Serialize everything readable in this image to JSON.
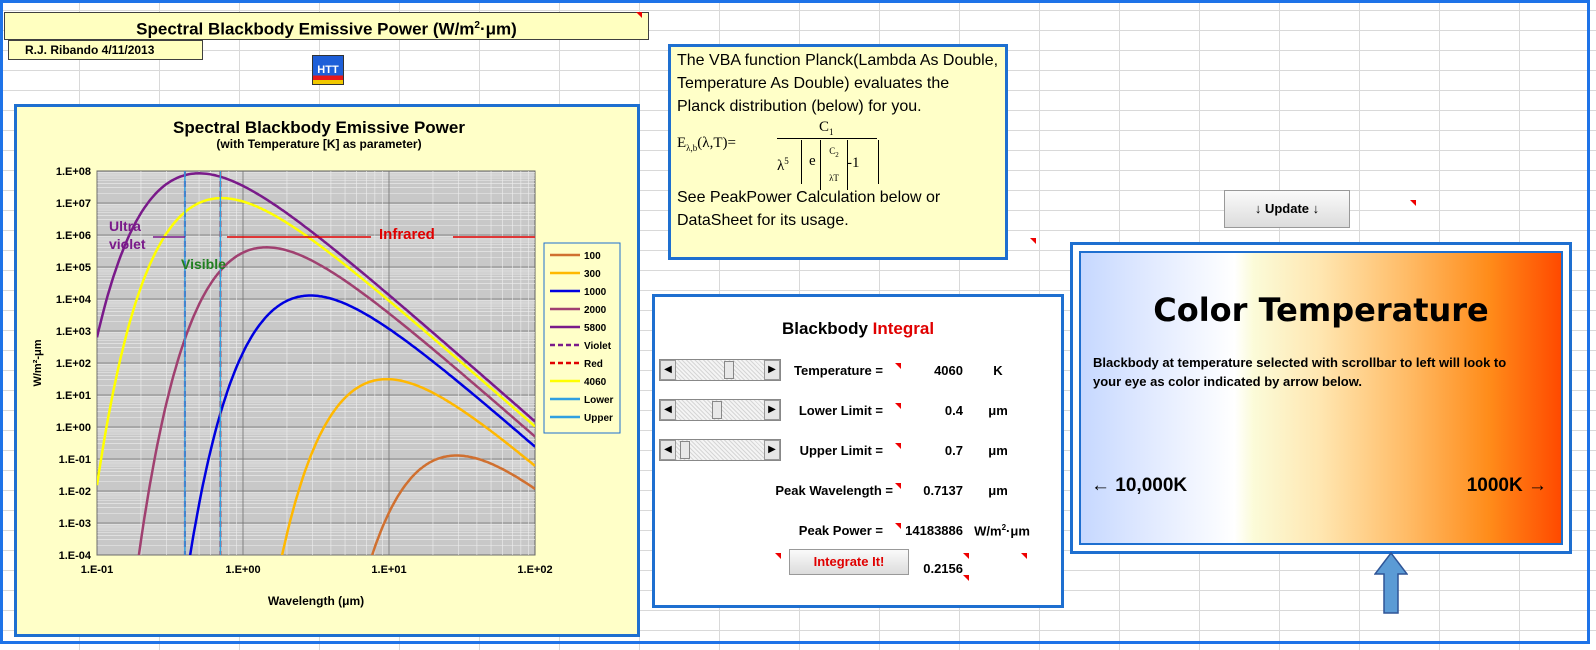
{
  "sheet": {
    "title_main": "Spectral Blackbody Emissive Power (W/m",
    "title_sup": "2",
    "title_end": "·μm)",
    "author": "R.J. Ribando 4/11/2013",
    "logo_text": "HTT"
  },
  "vba_note": {
    "text1": "The VBA function Planck(Lambda As Double, Temperature As Double) evaluates the Planck distribution (below) for you.",
    "text2": "See PeakPower Calculation below or DataSheet for its usage.",
    "formula": {
      "lhs_E": "E",
      "lhs_sub": "λ,b",
      "lhs_args": "(λ,T)=",
      "numerator": "C",
      "numerator_sub": "1",
      "lambda5": "λ",
      "lambda5_sup": "5",
      "exp_base": "e",
      "exp_num": "C",
      "exp_num_sub": "2",
      "exp_den": "λT",
      "minus_one": "-1"
    }
  },
  "integral": {
    "title_black": "Blackbody",
    "title_red": "Integral",
    "rows": [
      {
        "label": "Temperature =",
        "value": "4060",
        "unit": "K",
        "scroll_fraction": 0.6
      },
      {
        "label": "Lower Limit =",
        "value": "0.4",
        "unit": "μm",
        "scroll_fraction": 0.45
      },
      {
        "label": "Upper Limit =",
        "value": "0.7",
        "unit": "μm",
        "scroll_fraction": 0.05
      },
      {
        "label": "Peak Wavelength =",
        "value": "0.7137",
        "unit": "μm"
      },
      {
        "label": "Peak Power =",
        "value": "14183886",
        "unit": "W/m",
        "unit_sup": "2",
        "unit_end": "·μm"
      }
    ],
    "integrate_button": "Integrate It!",
    "integrate_result": "0.2156"
  },
  "update_button": "↓ Update ↓",
  "color_temp": {
    "title": "Color Temperature",
    "description": "Blackbody at temperature selected with scrollbar to left will look to your eye as color indicated by arrow below.",
    "left_label": "← 10,000K",
    "right_label": "1000K →",
    "arrow_color": "#5b9bd5"
  },
  "chart_data": {
    "type": "line",
    "title": "Spectral Blackbody Emissive Power",
    "subtitle": "(with Temperature [K] as parameter)",
    "xlabel": "Wavelength (μm)",
    "ylabel": "W/m²-μm",
    "x_scale": "log",
    "y_scale": "log",
    "xlim": [
      0.1,
      100
    ],
    "ylim": [
      0.0001,
      100000000
    ],
    "x_ticks": [
      "1.E-01",
      "1.E+00",
      "1.E+01",
      "1.E+02"
    ],
    "y_ticks": [
      "1.E-04",
      "1.E-03",
      "1.E-02",
      "1.E-01",
      "1.E+00",
      "1.E+01",
      "1.E+02",
      "1.E+03",
      "1.E+04",
      "1.E+05",
      "1.E+06",
      "1.E+07",
      "1.E+08"
    ],
    "grid": true,
    "legend_position": "right",
    "annotations": [
      {
        "text": "Ultra violet",
        "color": "#7a1a8a"
      },
      {
        "text": "Visible",
        "color": "#208020"
      },
      {
        "text": "Infrared",
        "color": "#e00000"
      }
    ],
    "series": [
      {
        "name": "100",
        "color": "#d07030",
        "temperature": 100
      },
      {
        "name": "300",
        "color": "#ffb800",
        "temperature": 300
      },
      {
        "name": "1000",
        "color": "#0000e0",
        "temperature": 1000
      },
      {
        "name": "2000",
        "color": "#a04070",
        "temperature": 2000
      },
      {
        "name": "5800",
        "color": "#7a1a8a",
        "temperature": 5800
      },
      {
        "name": "Violet",
        "color": "#7a1a8a",
        "dashed": true,
        "x": 0.4
      },
      {
        "name": "Red",
        "color": "#e00000",
        "dashed": true,
        "x": 0.7
      },
      {
        "name": "4060",
        "color": "#ffff00",
        "temperature": 4060
      },
      {
        "name": "Lower",
        "color": "#30a0e0",
        "x": 0.4
      },
      {
        "name": "Upper",
        "color": "#30a0e0",
        "x": 0.7
      }
    ]
  }
}
